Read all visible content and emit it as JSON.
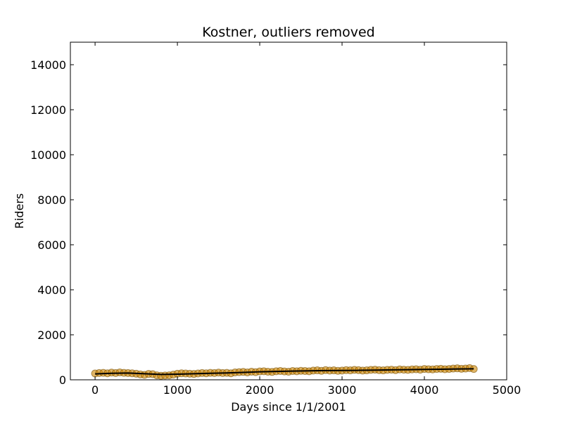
{
  "chart_data": {
    "type": "scatter",
    "title": "Kostner, outliers removed",
    "xlabel": "Days since 1/1/2001",
    "ylabel": "Riders",
    "xlim": [
      -300,
      5000
    ],
    "ylim": [
      0,
      15000
    ],
    "xticks": [
      0,
      1000,
      2000,
      3000,
      4000,
      5000
    ],
    "yticks": [
      0,
      2000,
      4000,
      6000,
      8000,
      10000,
      12000,
      14000
    ],
    "grid": false,
    "colors": {
      "scatter": "#cc8400",
      "trend": "#000000"
    },
    "series": [
      {
        "kind": "scatter",
        "x": [
          0,
          50,
          100,
          150,
          200,
          250,
          300,
          350,
          400,
          450,
          500,
          550,
          600,
          650,
          700,
          750,
          800,
          850,
          900,
          950,
          1000,
          1050,
          1100,
          1150,
          1200,
          1250,
          1300,
          1350,
          1400,
          1450,
          1500,
          1550,
          1600,
          1650,
          1700,
          1750,
          1800,
          1850,
          1900,
          1950,
          2000,
          2050,
          2100,
          2150,
          2200,
          2250,
          2300,
          2350,
          2400,
          2450,
          2500,
          2550,
          2600,
          2650,
          2700,
          2750,
          2800,
          2850,
          2900,
          2950,
          3000,
          3050,
          3100,
          3150,
          3200,
          3250,
          3300,
          3350,
          3400,
          3450,
          3500,
          3550,
          3600,
          3650,
          3700,
          3750,
          3800,
          3850,
          3900,
          3950,
          4000,
          4050,
          4100,
          4150,
          4200,
          4250,
          4300,
          4350,
          4400,
          4450,
          4500,
          4550,
          4600
        ],
        "values": [
          280,
          300,
          310,
          290,
          320,
          300,
          330,
          310,
          300,
          290,
          270,
          240,
          220,
          260,
          250,
          200,
          180,
          190,
          200,
          230,
          270,
          290,
          280,
          270,
          260,
          280,
          300,
          290,
          310,
          300,
          320,
          300,
          310,
          290,
          330,
          340,
          350,
          330,
          360,
          340,
          370,
          380,
          360,
          350,
          380,
          390,
          370,
          360,
          390,
          380,
          400,
          390,
          380,
          410,
          420,
          400,
          430,
          410,
          420,
          400,
          410,
          430,
          420,
          440,
          430,
          410,
          420,
          440,
          450,
          430,
          420,
          440,
          450,
          430,
          460,
          450,
          440,
          460,
          470,
          450,
          480,
          470,
          460,
          480,
          490,
          470,
          480,
          500,
          510,
          490,
          500,
          520,
          480
        ]
      },
      {
        "kind": "line",
        "x": [
          0,
          200,
          400,
          600,
          800,
          1000,
          1200,
          1400,
          1600,
          1800,
          2000,
          2200,
          2400,
          2600,
          2800,
          3000,
          3200,
          3400,
          3600,
          3800,
          4000,
          4200,
          4400,
          4600
        ],
        "values": [
          260,
          290,
          300,
          270,
          240,
          250,
          270,
          290,
          305,
          330,
          355,
          370,
          385,
          400,
          410,
          415,
          420,
          430,
          440,
          450,
          460,
          470,
          480,
          490
        ]
      }
    ]
  }
}
